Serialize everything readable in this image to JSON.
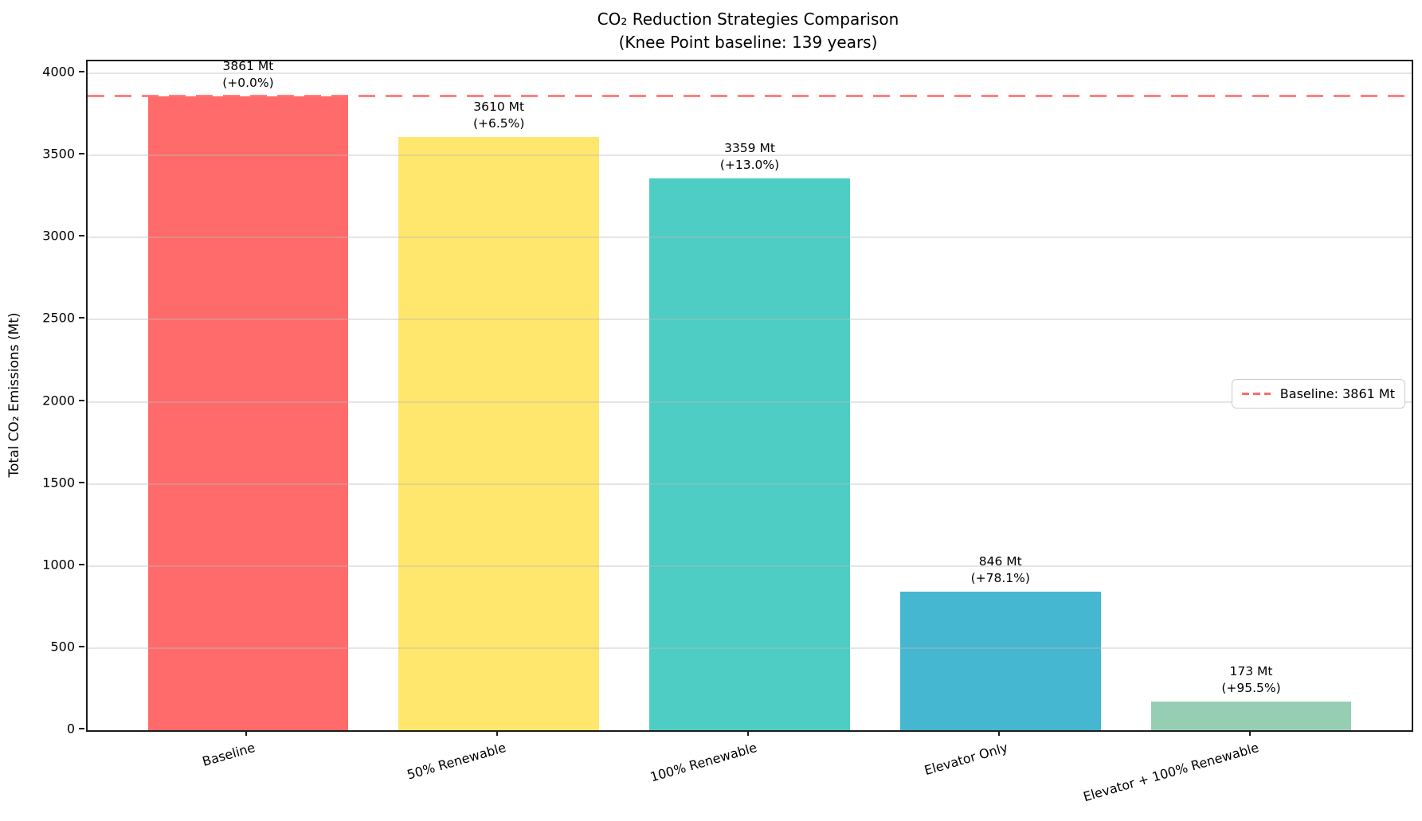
{
  "chart": {
    "title_line1": "CO₂ Reduction Strategies Comparison",
    "title_line2": "(Knee Point baseline: 139 years)",
    "ylabel": "Total CO₂ Emissions (Mt)",
    "legend_label": "Baseline: 3861 Mt"
  },
  "chart_data": {
    "type": "bar",
    "title": "CO₂ Reduction Strategies Comparison",
    "subtitle": "(Knee Point baseline: 139 years)",
    "xlabel": "",
    "ylabel": "Total CO₂ Emissions (Mt)",
    "categories": [
      "Baseline",
      "50% Renewable",
      "100% Renewable",
      "Elevator Only",
      "Elevator + 100% Renewable"
    ],
    "values": [
      3861,
      3610,
      3359,
      846,
      173
    ],
    "value_unit": "Mt",
    "value_labels": [
      "3861 Mt",
      "3610 Mt",
      "3359 Mt",
      "846 Mt",
      "173 Mt"
    ],
    "pct_labels": [
      "(+0.0%)",
      "(+6.5%)",
      "(+13.0%)",
      "(+78.1%)",
      "(+95.5%)"
    ],
    "bar_colors": [
      "#FF6B6B",
      "#FFE66D",
      "#4ECDC4",
      "#45B7D1",
      "#96CEB4"
    ],
    "yticks": [
      0,
      500,
      1000,
      1500,
      2000,
      2500,
      3000,
      3500,
      4000
    ],
    "ylim": [
      0,
      4073
    ],
    "grid": true,
    "baseline": {
      "value": 3861,
      "label": "Baseline: 3861 Mt",
      "color": "#FF6B6B",
      "style": "dashed"
    },
    "legend_position": "center right"
  },
  "colors": {
    "grid": "rgba(187,187,187,0.38)",
    "spine": "#1c1c1c",
    "background": "#ffffff",
    "baseline_line": "#FF6B6B"
  }
}
